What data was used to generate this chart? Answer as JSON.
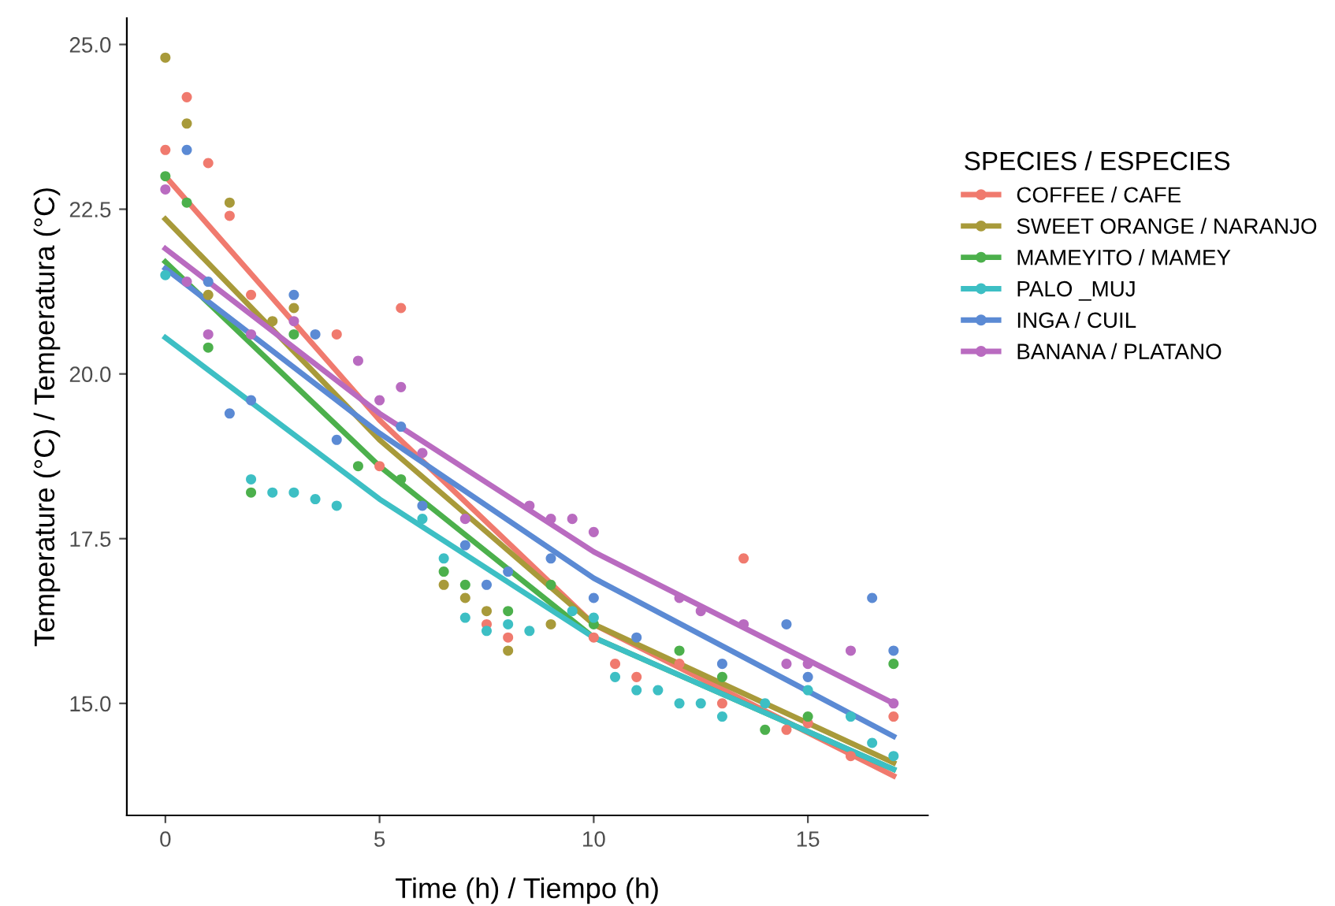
{
  "chart_data": {
    "type": "scatter",
    "xlabel": "Time (h) / Tiempo (h)",
    "ylabel": "Temperature (°C) / Temperatura (°C)",
    "legend_title": "SPECIES / ESPECIES",
    "legend": "right",
    "grid": false,
    "xlim": [
      -0.9,
      17.8
    ],
    "ylim": [
      13.3,
      25.4
    ],
    "xticks": [
      0,
      5,
      10,
      15
    ],
    "yticks": [
      {
        "value": 15,
        "label": "15.0"
      },
      {
        "value": 17.5,
        "label": "17.5"
      },
      {
        "value": 20,
        "label": "20.0"
      },
      {
        "value": 22.5,
        "label": "22.5"
      },
      {
        "value": 25,
        "label": "25.0"
      }
    ],
    "series": [
      {
        "name": "COFFEE / CAFE",
        "marker": "circle",
        "color": "#f07a6e",
        "x": [
          0,
          0.5,
          1,
          1.5,
          2,
          4,
          5,
          5.5,
          7.5,
          8,
          10,
          10.5,
          11,
          12,
          13,
          13.5,
          14.5,
          15,
          16,
          17
        ],
        "values": [
          23.4,
          24.2,
          23.2,
          22.4,
          21.2,
          20.6,
          18.6,
          21.0,
          16.2,
          16.0,
          16.0,
          15.6,
          15.4,
          15.6,
          15.0,
          17.2,
          14.6,
          14.7,
          14.2,
          14.8
        ]
      },
      {
        "name": "SWEET ORANGE / NARANJO",
        "marker": "circle",
        "color": "#a89a3a",
        "x": [
          0,
          0.5,
          1,
          1.5,
          2.5,
          3,
          6.5,
          7,
          7.5,
          8,
          9
        ],
        "values": [
          24.8,
          23.8,
          21.2,
          22.6,
          20.8,
          21.0,
          16.8,
          16.6,
          16.4,
          15.8,
          16.2
        ]
      },
      {
        "name": "MAMEYITO / MAMEY",
        "marker": "circle",
        "color": "#4cb04c",
        "x": [
          0,
          0.5,
          1,
          2,
          3,
          4.5,
          5.5,
          6.5,
          7,
          8,
          9,
          10,
          12,
          13,
          14,
          15,
          17
        ],
        "values": [
          23.0,
          22.6,
          20.4,
          18.2,
          20.6,
          18.6,
          18.4,
          17.0,
          16.8,
          16.4,
          16.8,
          16.2,
          15.8,
          15.4,
          14.6,
          14.8,
          15.6
        ]
      },
      {
        "name": "PALO _MUJ",
        "marker": "circle",
        "color": "#3dbfc4",
        "x": [
          0,
          2,
          2.5,
          3,
          3.5,
          4,
          6,
          6.5,
          7,
          7.5,
          8,
          8.5,
          9.5,
          10,
          10.5,
          11,
          11.5,
          12,
          12.5,
          13,
          14,
          15,
          16,
          16.5,
          17
        ],
        "values": [
          21.5,
          18.4,
          18.2,
          18.2,
          18.1,
          18.0,
          17.8,
          17.2,
          16.3,
          16.1,
          16.2,
          16.1,
          16.4,
          16.3,
          15.4,
          15.2,
          15.2,
          15.0,
          15.0,
          14.8,
          15.0,
          15.2,
          14.8,
          14.4,
          14.2
        ]
      },
      {
        "name": "INGA / CUIL",
        "marker": "circle",
        "color": "#5b8ad4",
        "x": [
          0.5,
          1,
          1.5,
          2,
          3,
          3.5,
          4,
          5.5,
          6,
          7,
          7.5,
          8,
          9,
          10,
          11,
          13,
          14.5,
          15,
          16.5,
          17
        ],
        "values": [
          23.4,
          21.4,
          19.4,
          19.6,
          21.2,
          20.6,
          19.0,
          19.2,
          18.0,
          17.4,
          16.8,
          17.0,
          17.2,
          16.6,
          16.0,
          15.6,
          16.2,
          15.4,
          16.6,
          15.8
        ]
      },
      {
        "name": "BANANA / PLATANO",
        "marker": "circle",
        "color": "#b96bc0",
        "x": [
          0,
          0.5,
          1,
          2,
          3,
          4.5,
          5,
          5.5,
          6,
          7,
          8.5,
          9,
          9.5,
          10,
          12,
          12.5,
          13.5,
          14.5,
          15,
          16,
          17
        ],
        "values": [
          22.8,
          21.4,
          20.6,
          20.6,
          20.8,
          20.2,
          19.6,
          19.8,
          18.8,
          17.8,
          18.0,
          17.8,
          17.8,
          17.6,
          16.6,
          16.4,
          16.2,
          15.6,
          15.6,
          15.8,
          15.0
        ]
      },
      {
        "type": "line",
        "color": "#f07a6e",
        "x": [
          0,
          5,
          10,
          17
        ],
        "values": [
          23.0,
          19.3,
          16.2,
          13.9
        ]
      },
      {
        "type": "line",
        "color": "#a89a3a",
        "x": [
          0,
          5,
          10,
          17
        ],
        "values": [
          22.35,
          19.0,
          16.2,
          14.1
        ]
      },
      {
        "type": "line",
        "color": "#4cb04c",
        "x": [
          0,
          5,
          10,
          17
        ],
        "values": [
          21.7,
          18.6,
          16.0,
          14.0
        ]
      },
      {
        "type": "line",
        "color": "#3dbfc4",
        "x": [
          0,
          5,
          10,
          17
        ],
        "values": [
          20.55,
          18.1,
          16.0,
          14.0
        ]
      },
      {
        "type": "line",
        "color": "#5b8ad4",
        "x": [
          0,
          5,
          10,
          17
        ],
        "values": [
          21.6,
          19.1,
          16.9,
          14.5
        ]
      },
      {
        "type": "line",
        "color": "#b96bc0",
        "x": [
          0,
          5,
          10,
          17
        ],
        "values": [
          21.9,
          19.4,
          17.3,
          15.0
        ]
      }
    ]
  }
}
